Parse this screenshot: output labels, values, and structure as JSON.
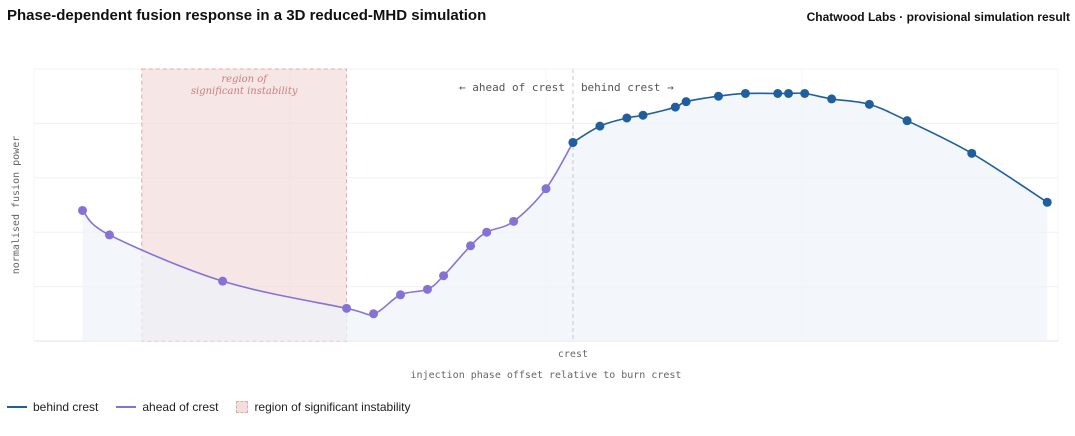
{
  "header": {
    "title": "Phase-dependent fusion response in a 3D reduced-MHD simulation",
    "subtitle": "Chatwood Labs · provisional simulation result"
  },
  "colors": {
    "behind": "#1f5f9e",
    "ahead": "#8672d4",
    "region_fill": "#f3dede",
    "region_border": "#e2aaaa",
    "region_text": "#c98080",
    "area_fill": "#eef3fa",
    "crest_line": "#cfcfd6"
  },
  "chart_data": {
    "type": "line",
    "xlabel": "injection phase offset relative to burn crest",
    "ylabel": "normalised fusion power",
    "x_tick_labels": [
      "crest"
    ],
    "xlim": [
      -1.0,
      0.9
    ],
    "ylim": [
      0,
      1
    ],
    "grid": true,
    "crest_x": 0,
    "annotations": {
      "ahead": "← ahead of crest",
      "behind": "behind crest →"
    },
    "region": {
      "label": "region of significant instability",
      "x_range": [
        -0.8,
        -0.42
      ]
    },
    "series": [
      {
        "name": "ahead of crest",
        "points": [
          [
            -0.91,
            0.48
          ],
          [
            -0.86,
            0.39
          ],
          [
            -0.65,
            0.22
          ],
          [
            -0.42,
            0.12
          ],
          [
            -0.37,
            0.1
          ],
          [
            -0.32,
            0.17
          ],
          [
            -0.27,
            0.19
          ],
          [
            -0.24,
            0.24
          ],
          [
            -0.19,
            0.35
          ],
          [
            -0.16,
            0.4
          ],
          [
            -0.11,
            0.44
          ],
          [
            -0.05,
            0.56
          ],
          [
            0.0,
            0.73
          ]
        ]
      },
      {
        "name": "behind crest",
        "points": [
          [
            0.0,
            0.73
          ],
          [
            0.05,
            0.79
          ],
          [
            0.1,
            0.82
          ],
          [
            0.13,
            0.83
          ],
          [
            0.19,
            0.86
          ],
          [
            0.21,
            0.88
          ],
          [
            0.27,
            0.9
          ],
          [
            0.32,
            0.91
          ],
          [
            0.38,
            0.91
          ],
          [
            0.4,
            0.91
          ],
          [
            0.43,
            0.91
          ],
          [
            0.48,
            0.89
          ],
          [
            0.55,
            0.87
          ],
          [
            0.62,
            0.81
          ],
          [
            0.74,
            0.69
          ],
          [
            0.88,
            0.51
          ]
        ]
      }
    ]
  },
  "legend": {
    "items": [
      {
        "label": "behind crest"
      },
      {
        "label": "ahead of crest"
      },
      {
        "label": "region of significant instability"
      }
    ]
  }
}
